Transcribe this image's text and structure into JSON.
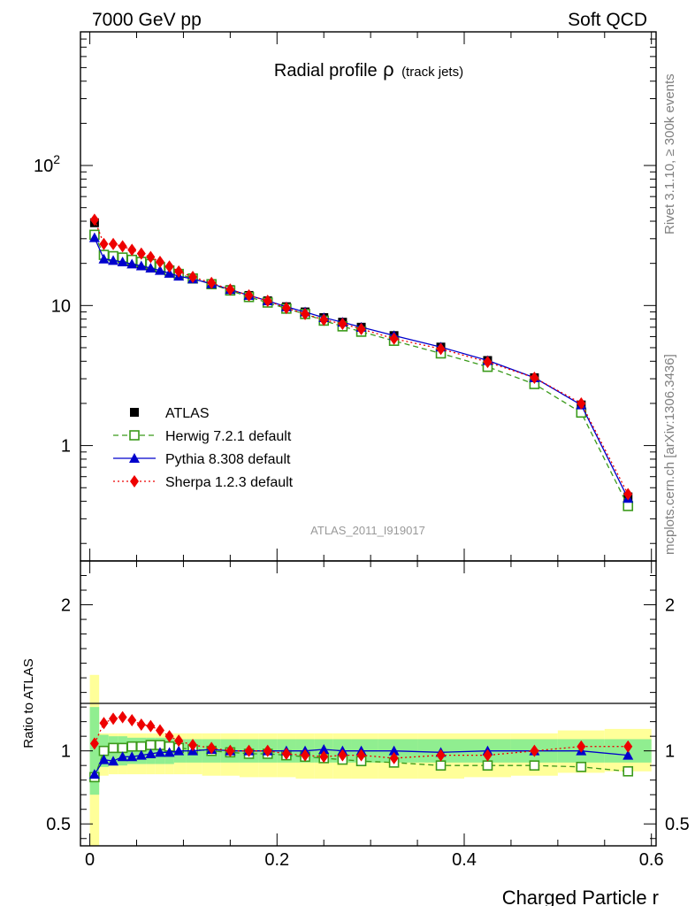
{
  "header": {
    "left": "7000 GeV pp",
    "right": "Soft QCD"
  },
  "side_labels": {
    "rivet": "Rivet 3.1.10, ≥ 300k events",
    "source": "mcplots.cern.ch [arXiv:1306.3436]"
  },
  "chart_data": [
    {
      "type": "line",
      "panel": "main",
      "title_main": "Radial profile",
      "title_symbol": "ρ",
      "title_suffix": "(track jets)",
      "watermark": "ATLAS_2011_I919017",
      "yscale": "log",
      "ylim": [
        0.15,
        900
      ],
      "xlim": [
        -0.01,
        0.605
      ],
      "y_tick_labels": [
        {
          "value": 1,
          "label": "1"
        },
        {
          "value": 10,
          "label": "10"
        },
        {
          "value": 100,
          "label": "10",
          "exp": "2"
        }
      ],
      "legend_placement": "middle-left",
      "x": [
        0.005,
        0.015,
        0.025,
        0.035,
        0.045,
        0.055,
        0.065,
        0.075,
        0.085,
        0.095,
        0.11,
        0.13,
        0.15,
        0.17,
        0.19,
        0.21,
        0.23,
        0.25,
        0.27,
        0.29,
        0.325,
        0.375,
        0.425,
        0.475,
        0.525,
        0.575
      ],
      "series": [
        {
          "name": "ATLAS",
          "marker": "square-filled",
          "color": "#000000",
          "line": "none",
          "values": [
            39,
            23,
            22.5,
            21.5,
            20.5,
            19.8,
            19,
            18,
            17.3,
            16.5,
            15.5,
            14.2,
            13,
            11.8,
            10.8,
            9.8,
            9,
            8.2,
            7.6,
            7,
            6.1,
            5.05,
            4.05,
            3.05,
            1.95,
            0.43
          ]
        },
        {
          "name": "Herwig 7.2.1 default",
          "marker": "square-open",
          "color": "#3a9a1a",
          "line": "dashed",
          "values": [
            32,
            23,
            22.5,
            22,
            21.2,
            20.5,
            19.8,
            18.8,
            17.8,
            16.8,
            15.6,
            14.2,
            12.8,
            11.5,
            10.5,
            9.5,
            8.7,
            7.8,
            7.1,
            6.5,
            5.6,
            4.55,
            3.65,
            2.75,
            1.72,
            0.37
          ]
        },
        {
          "name": "Pythia 8.308 default",
          "marker": "triangle-filled",
          "color": "#0000cc",
          "line": "solid",
          "values": [
            30.5,
            21.5,
            21,
            20.5,
            19.8,
            19.2,
            18.5,
            17.8,
            17,
            16.2,
            15.5,
            14.3,
            13,
            11.8,
            10.8,
            9.8,
            9,
            8.2,
            7.6,
            7,
            6.1,
            5.05,
            4.05,
            3.05,
            1.95,
            0.42
          ]
        },
        {
          "name": "Sherpa 1.2.3 default",
          "marker": "diamond-filled",
          "color": "#ee0000",
          "line": "dotted",
          "values": [
            41,
            27.5,
            27.5,
            26.5,
            25,
            23.5,
            22.2,
            20.5,
            19,
            17.5,
            16,
            14.5,
            13,
            11.8,
            10.8,
            9.6,
            8.7,
            7.9,
            7.4,
            6.8,
            5.8,
            4.9,
            3.95,
            3.05,
            2.0,
            0.45
          ]
        }
      ]
    },
    {
      "type": "line",
      "panel": "ratio",
      "ylabel": "Ratio to ATLAS",
      "xlabel": "Charged Particle r",
      "ylim": [
        0.35,
        2.3
      ],
      "xlim": [
        -0.01,
        0.605
      ],
      "x_tick_labels": [
        {
          "value": 0,
          "label": "0"
        },
        {
          "value": 0.2,
          "label": "0.2"
        },
        {
          "value": 0.4,
          "label": "0.4"
        },
        {
          "value": 0.6,
          "label": "0.6"
        }
      ],
      "y_tick_labels": [
        {
          "value": 0.5,
          "label": "0.5"
        },
        {
          "value": 1,
          "label": "1"
        },
        {
          "value": 2,
          "label": "2"
        }
      ],
      "bands": {
        "green": {
          "color": "#90ee90",
          "low": [
            0.7,
            0.89,
            0.9,
            0.9,
            0.91,
            0.91,
            0.91,
            0.91,
            0.91,
            0.92,
            0.92,
            0.92,
            0.92,
            0.92,
            0.92,
            0.92,
            0.92,
            0.92,
            0.92,
            0.92,
            0.92,
            0.92,
            0.92,
            0.92,
            0.92,
            0.92
          ],
          "high": [
            1.3,
            1.11,
            1.1,
            1.1,
            1.09,
            1.09,
            1.09,
            1.09,
            1.09,
            1.08,
            1.08,
            1.08,
            1.08,
            1.08,
            1.08,
            1.08,
            1.08,
            1.08,
            1.08,
            1.08,
            1.08,
            1.08,
            1.08,
            1.08,
            1.08,
            1.08
          ]
        },
        "yellow": {
          "color": "#ffff99",
          "low": [
            0.25,
            0.83,
            0.84,
            0.84,
            0.84,
            0.84,
            0.84,
            0.84,
            0.84,
            0.84,
            0.84,
            0.83,
            0.83,
            0.82,
            0.82,
            0.82,
            0.81,
            0.81,
            0.81,
            0.81,
            0.81,
            0.81,
            0.82,
            0.83,
            0.85,
            0.86
          ],
          "high": [
            1.52,
            1.12,
            1.12,
            1.12,
            1.12,
            1.12,
            1.12,
            1.12,
            1.12,
            1.12,
            1.12,
            1.12,
            1.12,
            1.12,
            1.12,
            1.12,
            1.12,
            1.12,
            1.12,
            1.12,
            1.12,
            1.12,
            1.12,
            1.12,
            1.14,
            1.15
          ]
        }
      },
      "series": [
        {
          "name": "Herwig 7.2.1 default",
          "marker": "square-open",
          "color": "#3a9a1a",
          "line": "dashed",
          "values": [
            0.82,
            1.0,
            1.02,
            1.02,
            1.03,
            1.03,
            1.04,
            1.04,
            1.03,
            1.02,
            1.01,
            1.0,
            0.99,
            0.98,
            0.98,
            0.97,
            0.96,
            0.95,
            0.94,
            0.93,
            0.92,
            0.9,
            0.9,
            0.9,
            0.89,
            0.86
          ]
        },
        {
          "name": "Pythia 8.308 default",
          "marker": "triangle-filled",
          "color": "#0000cc",
          "line": "solid",
          "values": [
            0.84,
            0.94,
            0.93,
            0.96,
            0.96,
            0.97,
            0.98,
            0.99,
            0.99,
            1.0,
            1.0,
            1.01,
            1.0,
            1.0,
            1.0,
            1.0,
            1.0,
            1.01,
            1.0,
            1.0,
            1.0,
            0.99,
            1.0,
            1.0,
            1.0,
            0.97
          ]
        },
        {
          "name": "Sherpa 1.2.3 default",
          "marker": "diamond-filled",
          "color": "#ee0000",
          "line": "dotted",
          "values": [
            1.05,
            1.19,
            1.22,
            1.23,
            1.21,
            1.18,
            1.17,
            1.14,
            1.1,
            1.07,
            1.04,
            1.02,
            1.0,
            1.0,
            1.0,
            0.98,
            0.97,
            0.96,
            0.97,
            0.97,
            0.95,
            0.97,
            0.97,
            1.0,
            1.03,
            1.03
          ]
        }
      ]
    }
  ]
}
